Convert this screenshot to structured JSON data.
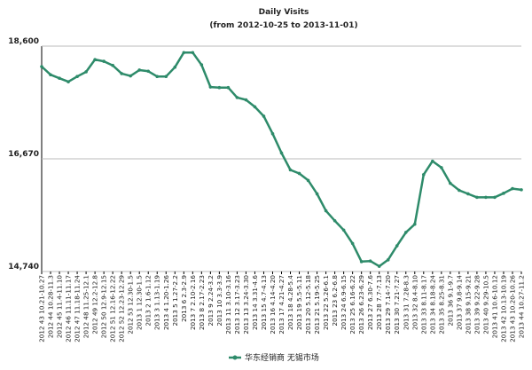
{
  "chart_data": {
    "type": "line",
    "title": "Daily Visits",
    "subtitle": "(from 2012-10-25 to 2013-11-01)",
    "categories": [
      "2012 43 10.21-10.27",
      "2012 44 10.28-11.3",
      "2012 45 11.4-11.10",
      "2012 46 11.11-11.17",
      "2012 47 11.18-11.24",
      "2012 48 11.25-12.1",
      "2012 49 12.2-12.8",
      "2012 50 12.9-12.15",
      "2012 51 12.16-12.22",
      "2012 52 12.23-12.29",
      "2012 53 12.30-1.5",
      "2013 1 12.30-1.5",
      "2013 2 1.6-1.12",
      "2013 3 1.13-1.19",
      "2013 4 1.20-1.26",
      "2013 5 1.27-2.2",
      "2013 6 2.3-2.9",
      "2013 7 2.10-2.16",
      "2013 8 2.17-2.23",
      "2013 9 2.24-3.2",
      "2013 10 3.3-3.9",
      "2013 11 3.10-3.16",
      "2013 12 3.17-3.23",
      "2013 13 3.24-3.30",
      "2013 14 3.31-4.6",
      "2013 15 4.7-4.13",
      "2013 16 4.14-4.20",
      "2013 17 4.21-4.27",
      "2013 18 4.28-5.4",
      "2013 19 5.5-5.11",
      "2013 20 5.12-5.18",
      "2013 21 5.19-5.25",
      "2013 22 5.26-6.1",
      "2013 23 6.2-6.8",
      "2013 24 6.9-6.15",
      "2013 25 6.16-6.22",
      "2013 26 6.23-6.29",
      "2013 27 6.30-7.6",
      "2013 28 7.7-7.13",
      "2013 29 7.14-7.20",
      "2013 30 7.21-7.27",
      "2013 31 7.28-8.3",
      "2013 32 8.4-8.10",
      "2013 33 8.11-8.17",
      "2013 34 8.18-8.24",
      "2013 35 8.25-8.31",
      "2013 36 9.1-9.7",
      "2013 37 9.8-9.14",
      "2013 38 9.15-9.21",
      "2013 39 9.22-9.28",
      "2013 40 9.29-10.5",
      "2013 41 10.6-10.12",
      "2013 42 10.13-10.19",
      "2013 43 10.20-10.26",
      "2013 44 10.27-11.2"
    ],
    "series": [
      {
        "name": "华东经销商 无锡市场",
        "color": "#2e8b6a",
        "values": [
          18250,
          18110,
          18050,
          17990,
          18080,
          18160,
          18370,
          18340,
          18270,
          18130,
          18090,
          18190,
          18170,
          18080,
          18080,
          18240,
          18490,
          18490,
          18280,
          17900,
          17890,
          17890,
          17720,
          17680,
          17560,
          17400,
          17100,
          16770,
          16480,
          16420,
          16300,
          16070,
          15780,
          15610,
          15450,
          15220,
          14910,
          14920,
          14830,
          14940,
          15180,
          15410,
          15550,
          16400,
          16630,
          16520,
          16250,
          16130,
          16070,
          16010,
          16010,
          16010,
          16080,
          16160,
          16140
        ]
      }
    ],
    "ylim": [
      14740,
      18600
    ],
    "yticks": [
      {
        "value": 14740,
        "label": "14,740"
      },
      {
        "value": 16670,
        "label": "16,670"
      },
      {
        "value": 18600,
        "label": "18,600"
      }
    ],
    "grid": true,
    "legend": "bottom"
  }
}
